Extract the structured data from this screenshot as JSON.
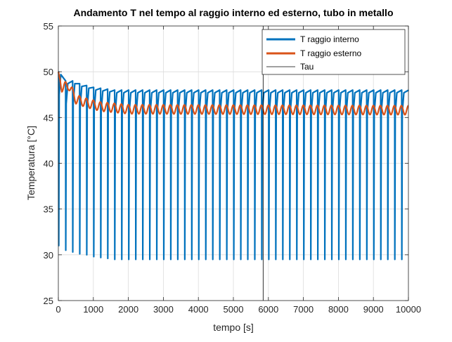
{
  "chart_data": {
    "type": "line",
    "title": "Andamento T nel tempo al raggio interno ed esterno, tubo in metallo",
    "xlabel": "tempo [s]",
    "ylabel": "Temperatura [°C]",
    "xlim": [
      0,
      10000
    ],
    "ylim": [
      25,
      55
    ],
    "xticks": [
      0,
      1000,
      2000,
      3000,
      4000,
      5000,
      6000,
      7000,
      8000,
      9000,
      10000
    ],
    "yticks": [
      25,
      30,
      35,
      40,
      45,
      50,
      55
    ],
    "xtick_labels": [
      "0",
      "1000",
      "2000",
      "3000",
      "4000",
      "5000",
      "6000",
      "7000",
      "8000",
      "9000",
      "10000"
    ],
    "ytick_labels": [
      "25",
      "30",
      "35",
      "40",
      "45",
      "50",
      "55"
    ],
    "grid": true,
    "legend_position": "top-right",
    "series": [
      {
        "name": "T raggio interno",
        "color": "#0072BD",
        "description_of_shape": "periodic",
        "period": 200,
        "start_value": 50,
        "first_minimum": 31,
        "steady_max": 48,
        "steady_min": 29.5,
        "max_transient_values": [
          50,
          49,
          49,
          48.7,
          48.5,
          48.3,
          48.2,
          48.1
        ],
        "min_transient_values": [
          31,
          30.5,
          30.3,
          30.1,
          30,
          29.8,
          29.7,
          29.6
        ]
      },
      {
        "name": "T raggio esterno",
        "color": "#D95319",
        "description_of_shape": "oscillating",
        "period": 200,
        "start_value": 50,
        "steady_max": 46.3,
        "steady_min": 45.3,
        "envelope_points": [
          [
            0,
            50
          ],
          [
            100,
            48.3
          ],
          [
            300,
            48.5
          ],
          [
            500,
            47
          ],
          [
            800,
            46.6
          ],
          [
            1200,
            46.2
          ],
          [
            2000,
            45.9
          ],
          [
            10000,
            45.8
          ]
        ]
      },
      {
        "name": "Tau",
        "color": "#000000",
        "description_of_shape": "vertical line",
        "x": 5850
      }
    ]
  }
}
